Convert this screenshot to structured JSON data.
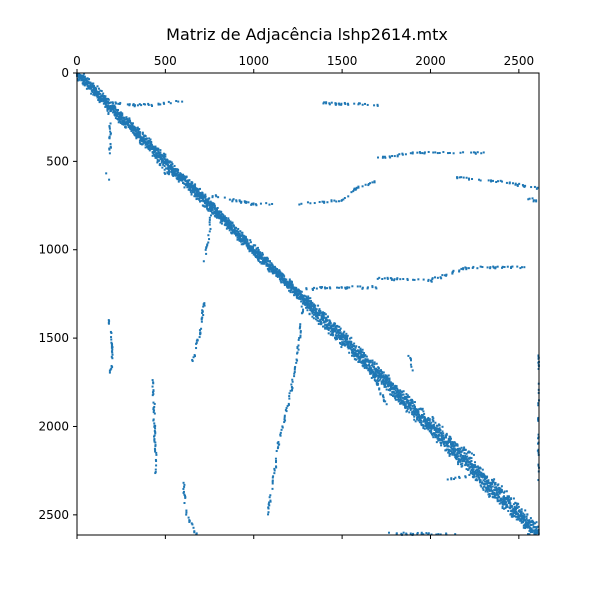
{
  "chart_data": {
    "type": "scatter",
    "title": "Matriz de Adjacência lshp2614.mtx",
    "xlabel": "",
    "ylabel": "",
    "matrix_size": 2614,
    "xlim": [
      0,
      2614
    ],
    "ylim": [
      2614,
      0
    ],
    "x_ticks": [
      0,
      500,
      1000,
      1500,
      2000,
      2500
    ],
    "y_ticks": [
      0,
      500,
      1000,
      1500,
      2000,
      2500
    ],
    "x_axis_position": "top",
    "grid": false,
    "marker_color": "#1f77b4",
    "diagonal_band": {
      "segments": [
        {
          "from": 0,
          "to": 800,
          "half_width": 45
        },
        {
          "from": 800,
          "to": 1300,
          "half_width": 40
        },
        {
          "from": 1300,
          "to": 2000,
          "half_width": 60
        },
        {
          "from": 2000,
          "to": 2614,
          "half_width": 70
        }
      ]
    },
    "off_diagonal_traces": [
      {
        "points": [
          [
            160,
            130
          ],
          [
            180,
            230
          ],
          [
            190,
            330
          ],
          [
            185,
            470
          ]
        ]
      },
      {
        "points": [
          [
            170,
            570
          ],
          [
            185,
            600
          ]
        ]
      },
      {
        "points": [
          [
            200,
            170
          ],
          [
            360,
            180
          ],
          [
            460,
            175
          ],
          [
            590,
            160
          ]
        ]
      },
      {
        "points": [
          [
            440,
            430
          ],
          [
            460,
            500
          ],
          [
            500,
            560
          ],
          [
            600,
            600
          ]
        ]
      },
      {
        "points": [
          [
            700,
            680
          ],
          [
            1000,
            740
          ],
          [
            1100,
            740
          ]
        ]
      },
      {
        "points": [
          [
            760,
            760
          ],
          [
            750,
            900
          ],
          [
            720,
            1070
          ]
        ]
      },
      {
        "points": [
          [
            1260,
            740
          ],
          [
            1500,
            720
          ],
          [
            1580,
            650
          ],
          [
            1700,
            610
          ]
        ]
      },
      {
        "points": [
          [
            1400,
            170
          ],
          [
            1600,
            175
          ],
          [
            1700,
            180
          ]
        ]
      },
      {
        "points": [
          [
            1700,
            480
          ],
          [
            1900,
            450
          ],
          [
            2100,
            450
          ],
          [
            2300,
            450
          ]
        ]
      },
      {
        "points": [
          [
            2150,
            590
          ],
          [
            2450,
            620
          ],
          [
            2600,
            650
          ]
        ]
      },
      {
        "points": [
          [
            2550,
            710
          ],
          [
            2614,
            720
          ]
        ]
      },
      {
        "points": [
          [
            1300,
            1220
          ],
          [
            1500,
            1210
          ],
          [
            1700,
            1210
          ]
        ]
      },
      {
        "points": [
          [
            1700,
            1160
          ],
          [
            2000,
            1170
          ],
          [
            2200,
            1100
          ],
          [
            2550,
            1100
          ]
        ]
      },
      {
        "points": [
          [
            1280,
            1280
          ],
          [
            1260,
            1500
          ],
          [
            1210,
            1800
          ],
          [
            1140,
            2100
          ],
          [
            1080,
            2500
          ]
        ]
      },
      {
        "points": [
          [
            720,
            1270
          ],
          [
            700,
            1450
          ],
          [
            650,
            1640
          ]
        ]
      },
      {
        "points": [
          [
            180,
            1400
          ],
          [
            200,
            1550
          ],
          [
            190,
            1700
          ]
        ]
      },
      {
        "points": [
          [
            430,
            1720
          ],
          [
            440,
            2000
          ],
          [
            450,
            2260
          ]
        ]
      },
      {
        "points": [
          [
            600,
            2300
          ],
          [
            620,
            2500
          ],
          [
            680,
            2614
          ]
        ]
      },
      {
        "points": [
          [
            1600,
            1600
          ],
          [
            1700,
            1760
          ],
          [
            1760,
            1900
          ]
        ]
      },
      {
        "points": [
          [
            1880,
            1600
          ],
          [
            1900,
            1680
          ]
        ]
      },
      {
        "points": [
          [
            2000,
            2000
          ],
          [
            2150,
            2100
          ],
          [
            2250,
            2160
          ]
        ]
      },
      {
        "points": [
          [
            2100,
            2300
          ],
          [
            2200,
            2280
          ]
        ]
      },
      {
        "points": [
          [
            2614,
            1600
          ],
          [
            2614,
            2300
          ]
        ]
      },
      {
        "points": [
          [
            1750,
            2600
          ],
          [
            2200,
            2614
          ]
        ]
      }
    ]
  }
}
